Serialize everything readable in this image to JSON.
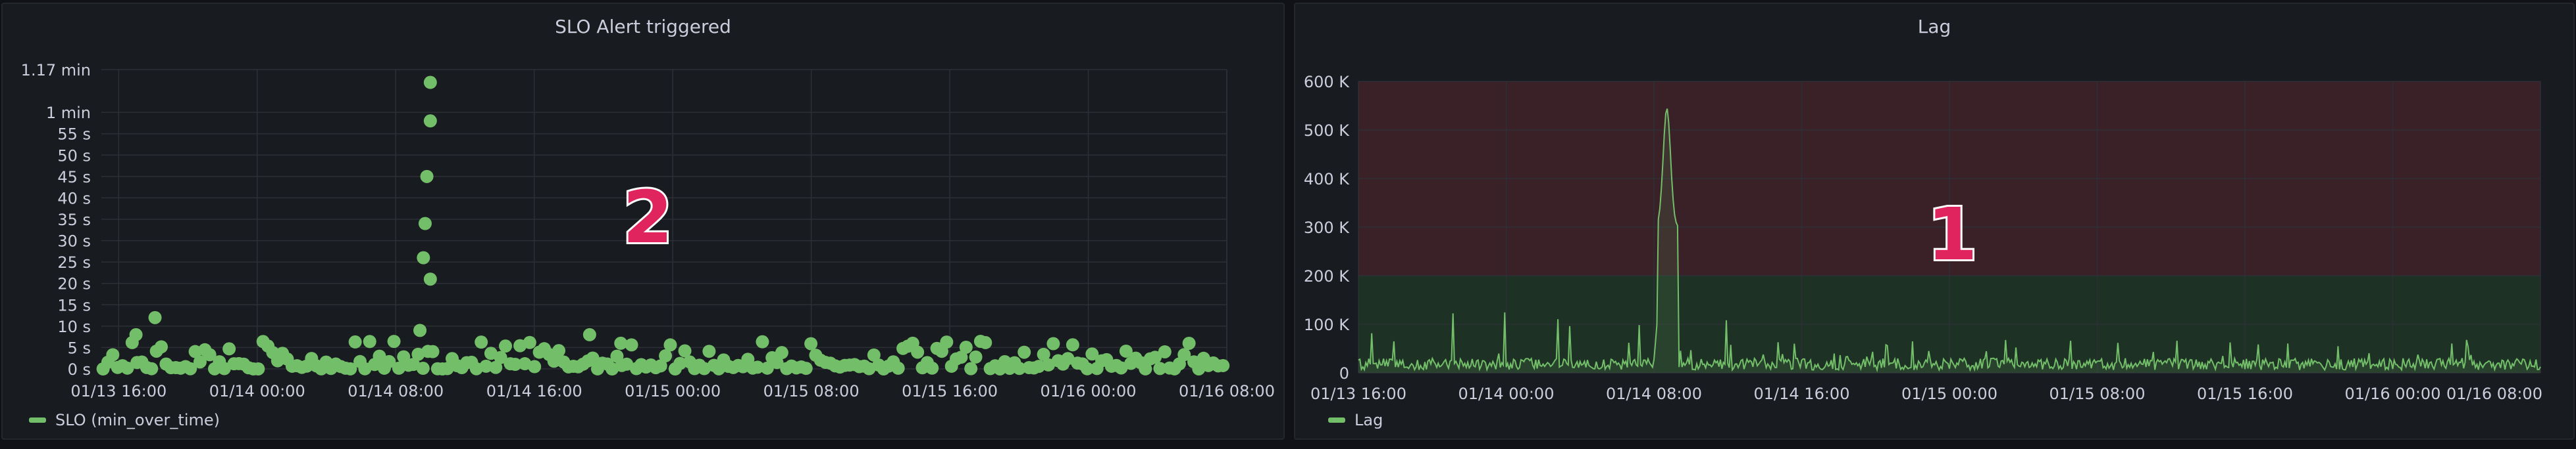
{
  "panels": [
    {
      "title": "SLO Alert triggered",
      "legend_label": "SLO (min_over_time)",
      "badge": "2"
    },
    {
      "title": "Lag",
      "legend_label": "Lag",
      "badge": "1"
    }
  ],
  "colors": {
    "series": "#73bf69",
    "grid": "#2c3036",
    "axis_text": "#ccccdc",
    "threshold_red": "#3a2128",
    "threshold_green": "#1e3125",
    "badge": "#e0245e"
  },
  "chart_data": [
    {
      "type": "scatter",
      "title": "SLO Alert triggered",
      "x_ticks": [
        "01/13 16:00",
        "01/14 00:00",
        "01/14 08:00",
        "01/14 16:00",
        "01/15 00:00",
        "01/15 08:00",
        "01/15 16:00",
        "01/16 00:00",
        "01/16 08:00"
      ],
      "y_ticks": [
        "0 s",
        "5 s",
        "10 s",
        "15 s",
        "20 s",
        "25 s",
        "30 s",
        "35 s",
        "40 s",
        "45 s",
        "50 s",
        "55 s",
        "1 min",
        "1.17 min"
      ],
      "y_tick_values": [
        0,
        5,
        10,
        15,
        20,
        25,
        30,
        35,
        40,
        45,
        50,
        55,
        60,
        70
      ],
      "ylim": [
        0,
        70
      ],
      "x_range_hours": [
        -1,
        64
      ],
      "grid": true,
      "legend_position": "bottom-left",
      "series": [
        {
          "name": "SLO (min_over_time)",
          "spike_points": [
            {
              "x_hours": 18.0,
              "y": 67
            },
            {
              "x_hours": 18.0,
              "y": 58
            },
            {
              "x_hours": 17.8,
              "y": 45
            },
            {
              "x_hours": 17.7,
              "y": 34
            },
            {
              "x_hours": 17.6,
              "y": 26
            },
            {
              "x_hours": 18.0,
              "y": 21
            },
            {
              "x_hours": 17.4,
              "y": 9
            },
            {
              "x_hours": 2.1,
              "y": 12
            },
            {
              "x_hours": 27.2,
              "y": 8
            },
            {
              "x_hours": 29.0,
              "y": 6
            },
            {
              "x_hours": 1.0,
              "y": 8
            }
          ],
          "baseline_range": [
            0,
            5
          ]
        }
      ]
    },
    {
      "type": "area",
      "title": "Lag",
      "x_ticks": [
        "01/13 16:00",
        "01/14 00:00",
        "01/14 08:00",
        "01/14 16:00",
        "01/15 00:00",
        "01/15 08:00",
        "01/15 16:00",
        "01/16 00:00",
        "01/16 08:00"
      ],
      "y_ticks": [
        "0",
        "100 K",
        "200 K",
        "300 K",
        "400 K",
        "500 K",
        "600 K"
      ],
      "y_tick_values": [
        0,
        100000,
        200000,
        300000,
        400000,
        500000,
        600000
      ],
      "ylim": [
        0,
        600000
      ],
      "x_range_hours": [
        0,
        64
      ],
      "grid": true,
      "legend_position": "bottom-left",
      "thresholds": [
        {
          "from": 0,
          "to": 200000,
          "color": "green"
        },
        {
          "from": 200000,
          "to": 600000,
          "color": "red"
        }
      ],
      "series": [
        {
          "name": "Lag",
          "peak": {
            "x_hours": 16.7,
            "y": 545000
          },
          "noise_max": 100000,
          "typical": 20000
        }
      ]
    }
  ]
}
